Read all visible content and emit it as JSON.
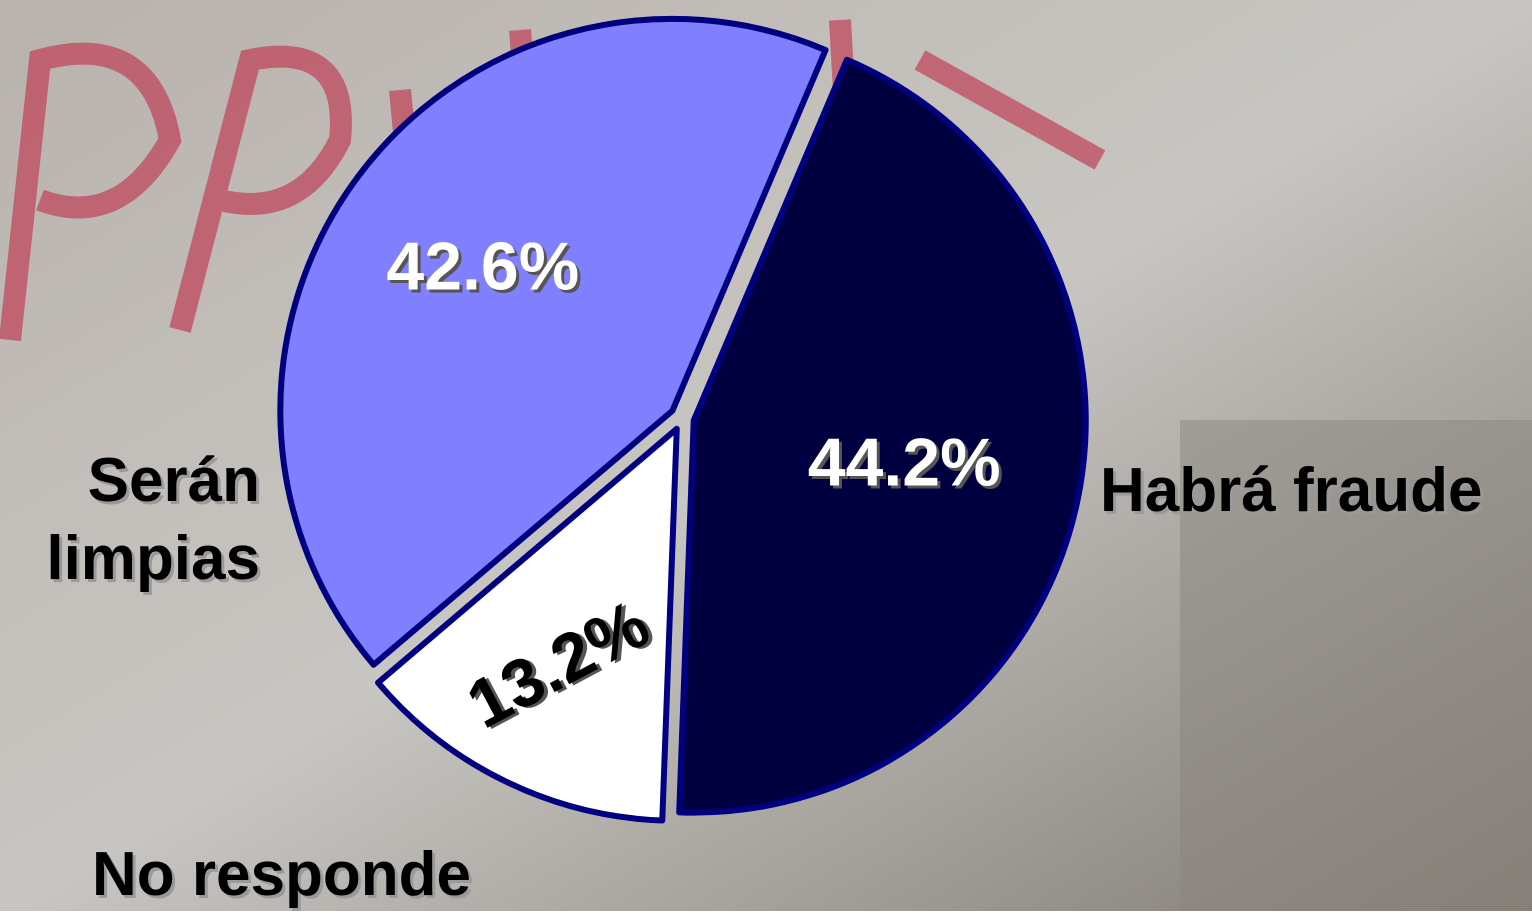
{
  "chart_data": {
    "type": "pie",
    "categories": [
      "Habrá fraude",
      "No responde",
      "Serán limpias"
    ],
    "values": [
      44.2,
      13.2,
      42.6
    ],
    "value_labels": [
      "44.2%",
      "13.2%",
      "42.6%"
    ],
    "colors": [
      "#000040",
      "#ffffff",
      "#8080ff"
    ]
  }
}
